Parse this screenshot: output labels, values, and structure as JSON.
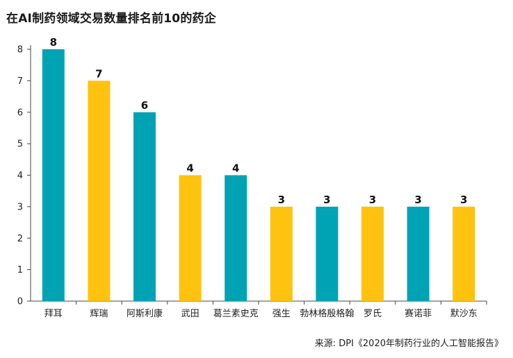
{
  "chart_data": {
    "type": "bar",
    "title": "在AI制药领域交易数量排名前10的药企",
    "xlabel": "",
    "ylabel": "",
    "categories": [
      "拜耳",
      "辉瑞",
      "阿斯利康",
      "武田",
      "葛兰素史克",
      "强生",
      "勃林格殷格翰",
      "罗氏",
      "赛诺菲",
      "默沙东"
    ],
    "values": [
      8,
      7,
      6,
      4,
      4,
      3,
      3,
      3,
      3,
      3
    ],
    "ylim": [
      0,
      8
    ],
    "yticks": [
      0,
      1,
      2,
      3,
      4,
      5,
      6,
      7,
      8
    ],
    "grid": false,
    "colors": {
      "teal": "#00a3b4",
      "yellow": "#ffc20e"
    },
    "bar_colors": [
      "teal",
      "yellow",
      "teal",
      "yellow",
      "teal",
      "yellow",
      "teal",
      "yellow",
      "teal",
      "yellow"
    ],
    "source": "来源: DPI《2020年制药行业的人工智能报告》"
  }
}
